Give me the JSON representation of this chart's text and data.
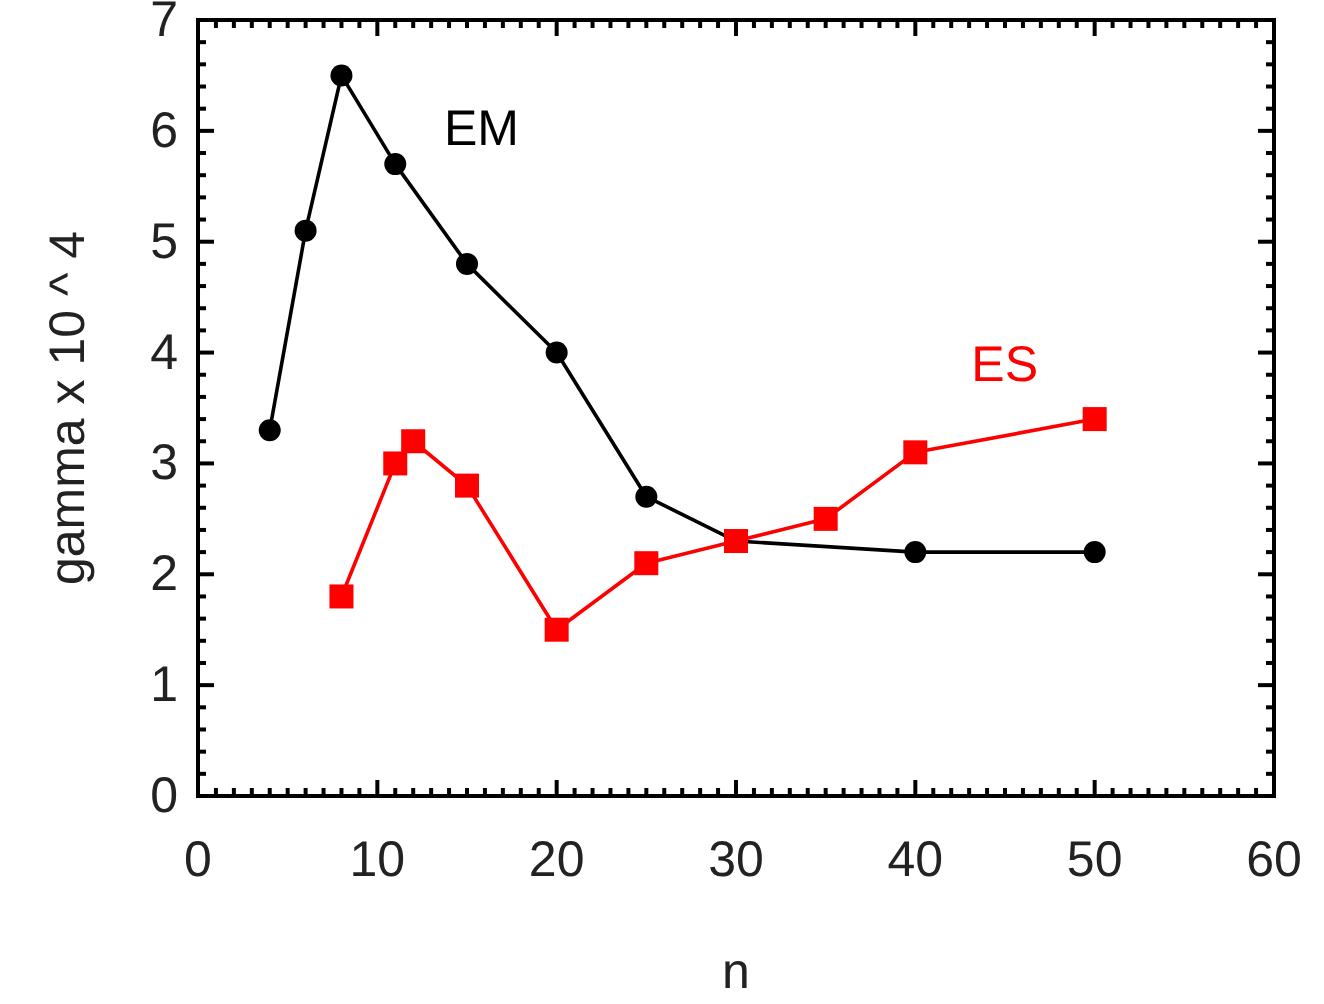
{
  "chart_data": {
    "type": "line",
    "xlabel": "n",
    "ylabel": "gamma x 10 ^ 4",
    "xlim": [
      0,
      60
    ],
    "ylim": [
      0,
      7
    ],
    "xticks": [
      0,
      {
        "value": 1,
        "label": null
      },
      {
        "value": 2,
        "label": null
      },
      {
        "value": 3,
        "label": null
      },
      {
        "value": 4,
        "label": null
      },
      {
        "value": 5,
        "label": null
      },
      {
        "value": 6,
        "label": null
      },
      {
        "value": 7,
        "label": null
      },
      {
        "value": 8,
        "label": null
      },
      {
        "value": 9,
        "label": null
      },
      10,
      {
        "value": 11,
        "label": null
      },
      {
        "value": 12,
        "label": null
      },
      {
        "value": 13,
        "label": null
      },
      {
        "value": 14,
        "label": null
      },
      {
        "value": 15,
        "label": null
      },
      {
        "value": 16,
        "label": null
      },
      {
        "value": 17,
        "label": null
      },
      {
        "value": 18,
        "label": null
      },
      {
        "value": 19,
        "label": null
      },
      20,
      {
        "value": 21,
        "label": null
      },
      {
        "value": 22,
        "label": null
      },
      {
        "value": 23,
        "label": null
      },
      {
        "value": 24,
        "label": null
      },
      {
        "value": 25,
        "label": null
      },
      {
        "value": 26,
        "label": null
      },
      {
        "value": 27,
        "label": null
      },
      {
        "value": 28,
        "label": null
      },
      {
        "value": 29,
        "label": null
      },
      30,
      {
        "value": 31,
        "label": null
      },
      {
        "value": 32,
        "label": null
      },
      {
        "value": 33,
        "label": null
      },
      {
        "value": 34,
        "label": null
      },
      {
        "value": 35,
        "label": null
      },
      {
        "value": 36,
        "label": null
      },
      {
        "value": 37,
        "label": null
      },
      {
        "value": 38,
        "label": null
      },
      {
        "value": 39,
        "label": null
      },
      40,
      {
        "value": 41,
        "label": null
      },
      {
        "value": 42,
        "label": null
      },
      {
        "value": 43,
        "label": null
      },
      {
        "value": 44,
        "label": null
      },
      {
        "value": 45,
        "label": null
      },
      {
        "value": 46,
        "label": null
      },
      {
        "value": 47,
        "label": null
      },
      {
        "value": 48,
        "label": null
      },
      {
        "value": 49,
        "label": null
      },
      50,
      {
        "value": 51,
        "label": null
      },
      {
        "value": 52,
        "label": null
      },
      {
        "value": 53,
        "label": null
      },
      {
        "value": 54,
        "label": null
      },
      {
        "value": 55,
        "label": null
      },
      {
        "value": 56,
        "label": null
      },
      {
        "value": 57,
        "label": null
      },
      {
        "value": 58,
        "label": null
      },
      {
        "value": 59,
        "label": null
      },
      60
    ],
    "yticks": [
      0,
      {
        "value": 0.2,
        "label": null
      },
      {
        "value": 0.4,
        "label": null
      },
      {
        "value": 0.6,
        "label": null
      },
      {
        "value": 0.8,
        "label": null
      },
      1,
      {
        "value": 1.2,
        "label": null
      },
      {
        "value": 1.4,
        "label": null
      },
      {
        "value": 1.6,
        "label": null
      },
      {
        "value": 1.8,
        "label": null
      },
      2,
      {
        "value": 2.2,
        "label": null
      },
      {
        "value": 2.4,
        "label": null
      },
      {
        "value": 2.6,
        "label": null
      },
      {
        "value": 2.8,
        "label": null
      },
      3,
      {
        "value": 3.2,
        "label": null
      },
      {
        "value": 3.4,
        "label": null
      },
      {
        "value": 3.6,
        "label": null
      },
      {
        "value": 3.8,
        "label": null
      },
      4,
      {
        "value": 4.2,
        "label": null
      },
      {
        "value": 4.4,
        "label": null
      },
      {
        "value": 4.6,
        "label": null
      },
      {
        "value": 4.8,
        "label": null
      },
      5,
      {
        "value": 5.2,
        "label": null
      },
      {
        "value": 5.4,
        "label": null
      },
      {
        "value": 5.6,
        "label": null
      },
      {
        "value": 5.8,
        "label": null
      },
      6,
      {
        "value": 6.2,
        "label": null
      },
      {
        "value": 6.4,
        "label": null
      },
      {
        "value": 6.6,
        "label": null
      },
      {
        "value": 6.8,
        "label": null
      },
      7
    ],
    "grid": false,
    "series": [
      {
        "name": "EM",
        "color": "#000000",
        "marker": "circle",
        "x": [
          4,
          6,
          8,
          11,
          15,
          20,
          25,
          30,
          40,
          50
        ],
        "values": [
          3.3,
          5.1,
          6.5,
          5.7,
          4.8,
          4.0,
          2.7,
          2.3,
          2.2,
          2.2
        ]
      },
      {
        "name": "ES",
        "color": "#ff0000",
        "marker": "square",
        "x": [
          8,
          11,
          12,
          15,
          20,
          25,
          30,
          35,
          40,
          50
        ],
        "values": [
          1.8,
          3.0,
          3.2,
          2.8,
          1.5,
          2.1,
          2.3,
          2.5,
          3.1,
          3.4
        ]
      }
    ]
  }
}
